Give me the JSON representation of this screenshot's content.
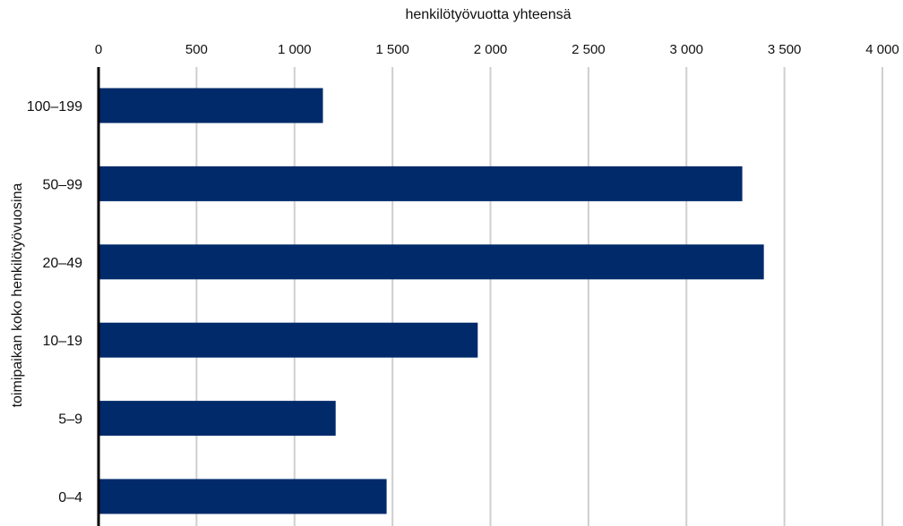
{
  "chart_data": {
    "type": "bar",
    "orientation": "horizontal",
    "title": "",
    "xlabel": "henkilötyövuotta yhteensä",
    "ylabel": "toimipaikan koko henkilötyövuosina",
    "x_axis_position": "top",
    "xlim": [
      0,
      4000
    ],
    "xticks": [
      0,
      500,
      1000,
      1500,
      2000,
      2500,
      3000,
      3500,
      4000
    ],
    "xtick_labels": [
      "0",
      "500",
      "1 000",
      "1 500",
      "2 000",
      "2 500",
      "3 000",
      "3 500",
      "4 000"
    ],
    "grid": true,
    "categories": [
      "100–199",
      "50–99",
      "20–49",
      "10–19",
      "5–9",
      "0–4"
    ],
    "values": [
      1145,
      3285,
      3395,
      1935,
      1210,
      1470
    ],
    "bar_color": "#002a6a",
    "grid_color": "#cfcfcf",
    "axis_color": "#000000"
  }
}
